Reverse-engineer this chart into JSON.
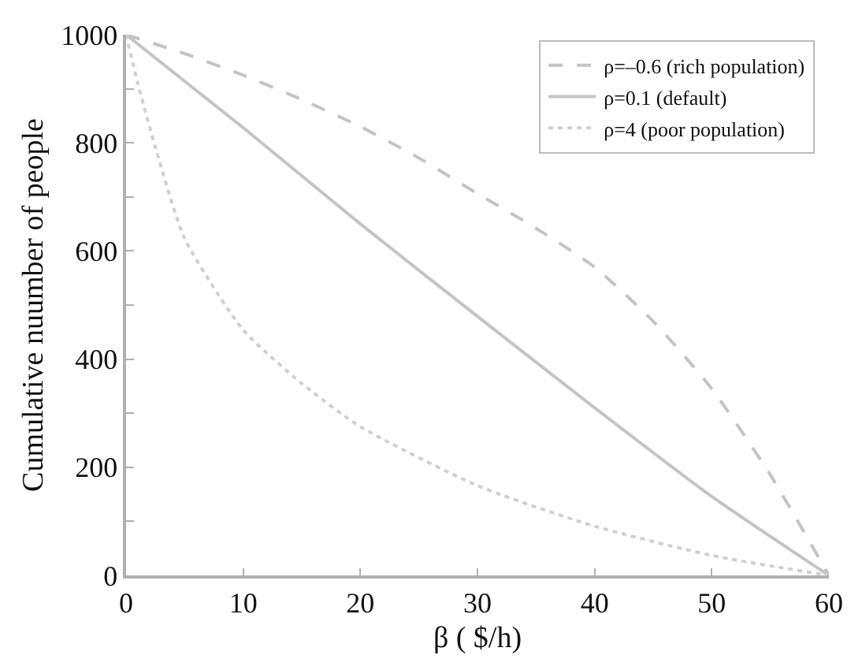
{
  "chart_data": {
    "type": "line",
    "xlabel": "β ( $/h)",
    "ylabel": "Cumulative nuumber of people",
    "xlim": [
      0,
      60
    ],
    "ylim": [
      0,
      1000
    ],
    "xticks": [
      0,
      10,
      20,
      30,
      40,
      50,
      60
    ],
    "yticks": [
      0,
      {
        "value": 100,
        "label": null
      },
      200,
      {
        "value": 300,
        "label": null
      },
      400,
      {
        "value": 500,
        "label": null
      },
      600,
      {
        "value": 700,
        "label": null
      },
      800,
      {
        "value": 900,
        "label": null
      },
      1000
    ],
    "legend": "top right",
    "marker": "none",
    "series": [
      {
        "name": "ρ=–0.6 (rich population)",
        "color": "#c4c4c4",
        "line_style": "dashed",
        "x": [
          0,
          5,
          10,
          15,
          20,
          25,
          30,
          35,
          40,
          45,
          50,
          55,
          60
        ],
        "values": [
          1000,
          965,
          925,
          880,
          830,
          772,
          706,
          642,
          570,
          470,
          345,
          186,
          0
        ]
      },
      {
        "name": "ρ=0.1 (default)",
        "color": "#c4c4c4",
        "line_style": "solid",
        "x": [
          0,
          10,
          20,
          30,
          40,
          50,
          60
        ],
        "values": [
          1000,
          828,
          650,
          479,
          310,
          146,
          0
        ]
      },
      {
        "name": "ρ=4 (poor population)",
        "color": "#d0d0d0",
        "line_style": "dotted",
        "x": [
          0,
          1,
          2.5,
          5,
          10,
          15,
          20,
          30,
          40,
          50,
          60
        ],
        "values": [
          1000,
          910,
          792,
          623,
          454,
          355,
          275,
          166,
          91,
          37,
          0
        ]
      }
    ]
  }
}
